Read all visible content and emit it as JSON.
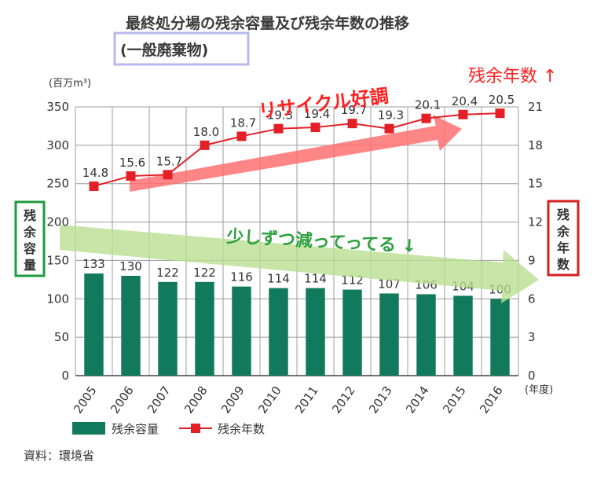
{
  "title": "最終処分場の残余容量及び残余年数の推移",
  "subtitle": "(一般廃棄物)",
  "source": "資料：環境省",
  "colors": {
    "bar": "#127a5c",
    "line": "#e41f26",
    "grid": "#9c9c9c",
    "subtitle_border": "#b8b8f0",
    "box_green": "#1c9c3c",
    "box_red": "#d42020",
    "arrow_red": "#ff6b6b",
    "arrow_green": "#b9df91"
  },
  "annotations": {
    "recycle": "リサイクル好調",
    "decrease": "少しずつ減ってってる ↓",
    "years_up": "残余年数 ↑",
    "left_box": "残余容量",
    "right_box": "残余年数"
  },
  "chart_data": {
    "type": "bar+line",
    "categories": [
      "2005",
      "2006",
      "2007",
      "2008",
      "2009",
      "2010",
      "2011",
      "2012",
      "2013",
      "2014",
      "2015",
      "2016"
    ],
    "series": [
      {
        "name": "残余容量",
        "type": "bar",
        "axis": "left",
        "values": [
          133,
          130,
          122,
          122,
          116,
          114,
          114,
          112,
          107,
          106,
          104,
          100
        ]
      },
      {
        "name": "残余年数",
        "type": "line",
        "axis": "right",
        "values": [
          14.8,
          15.6,
          15.7,
          18.0,
          18.7,
          19.3,
          19.4,
          19.7,
          19.3,
          20.1,
          20.4,
          20.5
        ]
      }
    ],
    "left_axis": {
      "label": "(百万m³)",
      "ylim": [
        0,
        350
      ],
      "ticks": [
        0,
        50,
        100,
        150,
        200,
        250,
        300,
        350
      ]
    },
    "right_axis": {
      "ylim": [
        0,
        21
      ],
      "ticks": [
        0,
        3,
        6,
        9,
        12,
        15,
        18,
        21
      ]
    },
    "xlabel": "(年度)",
    "legend": {
      "position": "bottom-left",
      "entries": [
        "残余容量",
        "残余年数"
      ]
    },
    "grid": true
  }
}
